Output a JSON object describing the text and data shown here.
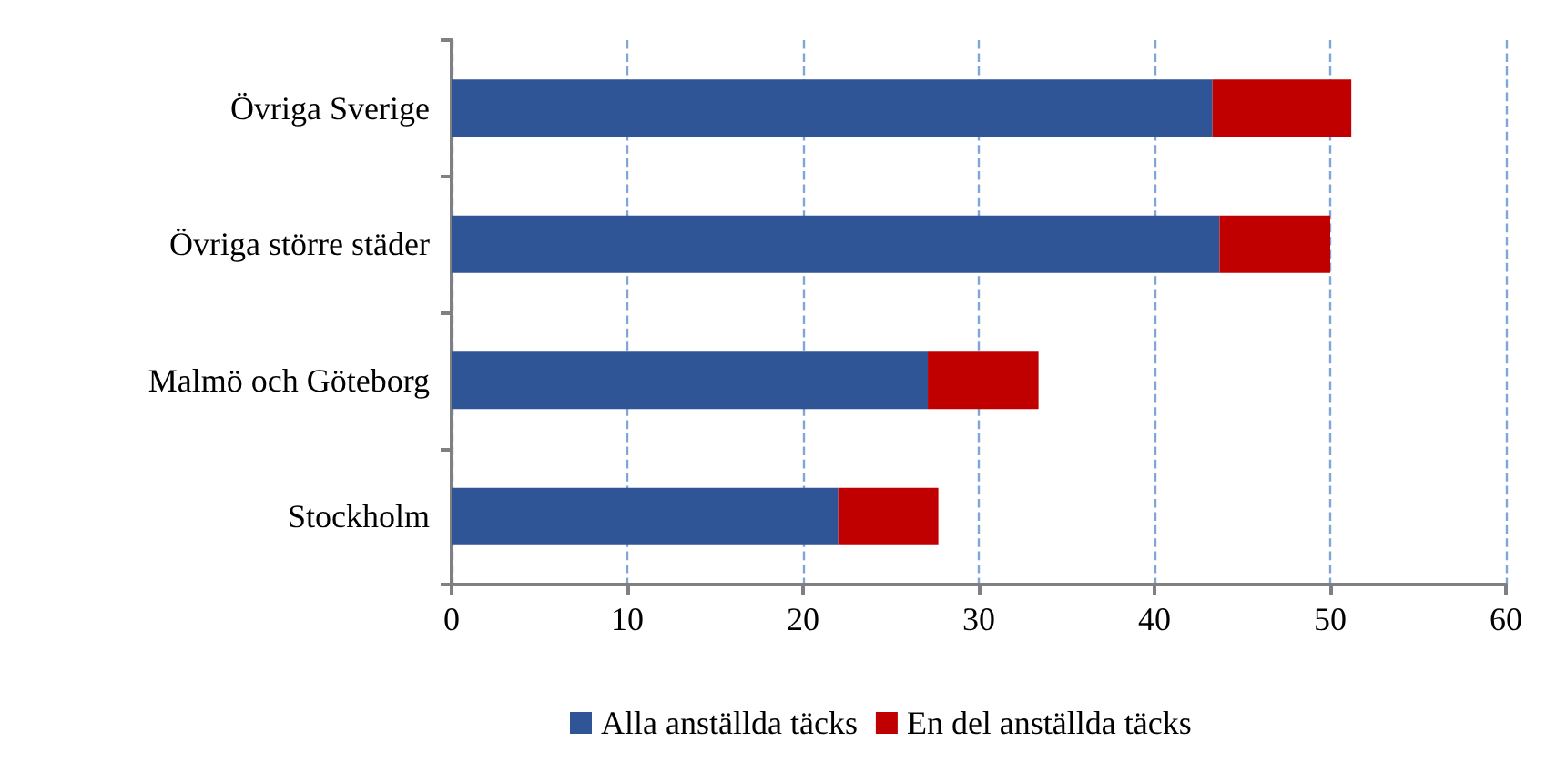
{
  "chart_data": {
    "type": "bar",
    "orientation": "horizontal",
    "stacked": true,
    "categories": [
      "Övriga Sverige",
      "Övriga större städer",
      "Malmö och Göteborg",
      "Stockholm"
    ],
    "series": [
      {
        "name": "Alla anställda täcks",
        "color": "#2f5597",
        "values": [
          43.3,
          43.7,
          27.1,
          22.0
        ]
      },
      {
        "name": "En del anställda täcks",
        "color": "#c00000",
        "values": [
          7.9,
          6.3,
          6.3,
          5.7
        ]
      }
    ],
    "xlim": [
      0,
      60
    ],
    "xticks": [
      0,
      10,
      20,
      30,
      40,
      50,
      60
    ],
    "grid": "x",
    "legend": "bottom"
  }
}
